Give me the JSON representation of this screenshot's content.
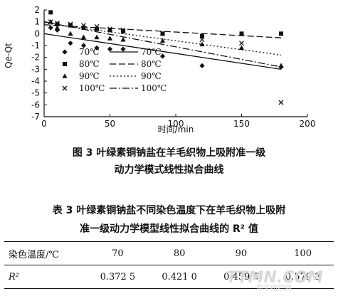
{
  "chart_data": {
    "type": "scatter",
    "title": "",
    "xlabel": "时间/min",
    "ylabel": "Qe-Qt",
    "xlim": [
      0,
      200
    ],
    "ylim": [
      -7,
      2
    ],
    "xticks": [
      0,
      50,
      100,
      150,
      200
    ],
    "yticks": [
      2,
      1,
      0,
      -1,
      -2,
      -3,
      -4,
      -5,
      -6,
      -7
    ],
    "grid": false,
    "legend_placement": "center",
    "series": [
      {
        "name": "70℃",
        "marker": "diamond",
        "line_style": "solid",
        "points": [
          [
            5,
            0.5
          ],
          [
            10,
            0.3
          ],
          [
            20,
            -0.8
          ],
          [
            30,
            -1.0
          ],
          [
            40,
            -1.2
          ],
          [
            50,
            -1.3
          ],
          [
            60,
            -1.3
          ],
          [
            90,
            -1.9
          ],
          [
            120,
            -2.7
          ],
          [
            180,
            -2.8
          ]
        ],
        "fit": [
          [
            0,
            0.0
          ],
          [
            180,
            -3.0
          ]
        ]
      },
      {
        "name": "80℃",
        "marker": "square",
        "line_style": "dashed",
        "points": [
          [
            5,
            1.8
          ],
          [
            10,
            0.8
          ],
          [
            20,
            0.7
          ],
          [
            30,
            0.5
          ],
          [
            40,
            0.4
          ],
          [
            50,
            0.3
          ],
          [
            60,
            0.2
          ],
          [
            90,
            0.0
          ],
          [
            120,
            -0.2
          ],
          [
            150,
            0.0
          ],
          [
            180,
            0.0
          ]
        ],
        "fit": [
          [
            0,
            0.75
          ],
          [
            180,
            -0.35
          ]
        ]
      },
      {
        "name": "90℃",
        "marker": "triangle",
        "line_style": "dotted",
        "points": [
          [
            5,
            1.0
          ],
          [
            10,
            0.5
          ],
          [
            20,
            0.0
          ],
          [
            30,
            -0.3
          ],
          [
            40,
            -0.3
          ],
          [
            50,
            -0.4
          ],
          [
            60,
            -0.5
          ],
          [
            90,
            -0.6
          ],
          [
            120,
            -0.9
          ],
          [
            150,
            -1.2
          ],
          [
            180,
            -2.7
          ]
        ],
        "fit": [
          [
            0,
            0.9
          ],
          [
            180,
            -1.8
          ]
        ]
      },
      {
        "name": "100℃",
        "marker": "x",
        "line_style": "dash-dot",
        "points": [
          [
            5,
            1.0
          ],
          [
            10,
            0.9
          ],
          [
            20,
            0.8
          ],
          [
            30,
            0.7
          ],
          [
            40,
            0.6
          ],
          [
            50,
            0.4
          ],
          [
            60,
            0.3
          ],
          [
            90,
            0.0
          ],
          [
            120,
            -0.5
          ],
          [
            150,
            -0.8
          ],
          [
            180,
            -5.8
          ]
        ],
        "fit": [
          [
            0,
            1.0
          ],
          [
            180,
            -2.8
          ]
        ]
      }
    ]
  },
  "figure_caption": {
    "line1": "图 3  叶绿素铜钠盐在羊毛织物上吸附准一级",
    "line2": "动力学模式线性拟合曲线"
  },
  "table_caption": {
    "line1": "表 3  叶绿素铜钠盐不同染色温度下在羊毛织物上吸附",
    "line2": "准一级动力学模型线性拟合曲线的 R² 值"
  },
  "table": {
    "header_label": "染色温度/℃",
    "temperatures": [
      "70",
      "80",
      "90",
      "100"
    ],
    "row_label": "R²",
    "values": [
      "0.372 5",
      "0.421 0",
      "0.459 5",
      "0.579 3"
    ]
  },
  "watermark": {
    "main": "TTMN.COM",
    "sub": "中华纺织网"
  }
}
